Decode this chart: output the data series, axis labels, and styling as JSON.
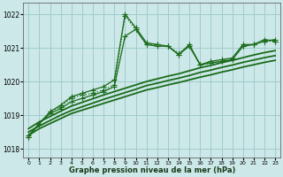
{
  "xlabel": "Graphe pression niveau de la mer (hPa)",
  "bg_color": "#cce8e8",
  "grid_color": "#a0cccc",
  "line_color": "#1a6b1a",
  "xlim": [
    -0.5,
    23.5
  ],
  "ylim": [
    1017.75,
    1022.35
  ],
  "yticks": [
    1018,
    1019,
    1020,
    1021,
    1022
  ],
  "xticks": [
    0,
    1,
    2,
    3,
    4,
    5,
    6,
    7,
    8,
    9,
    10,
    11,
    12,
    13,
    14,
    15,
    16,
    17,
    18,
    19,
    20,
    21,
    22,
    23
  ],
  "series": [
    {
      "x": [
        0,
        1,
        2,
        3,
        4,
        5,
        6,
        7,
        8,
        9,
        10,
        11,
        12,
        13,
        14,
        15,
        16,
        17,
        18,
        19,
        20,
        21,
        22,
        23
      ],
      "y": [
        1018.35,
        1018.75,
        1019.1,
        1019.25,
        1019.5,
        1019.6,
        1019.65,
        1019.75,
        1019.9,
        1021.95,
        1021.55,
        1021.1,
        1021.1,
        1021.05,
        1020.85,
        1021.05,
        1020.5,
        1020.55,
        1020.6,
        1020.65,
        1021.05,
        1021.1,
        1021.2,
        1021.2
      ],
      "marker": "+",
      "markersize": 4,
      "linewidth": 0.9,
      "linestyle": ":"
    },
    {
      "x": [
        0,
        1,
        2,
        3,
        4,
        5,
        6,
        7,
        8,
        9,
        10,
        11,
        12,
        13,
        14,
        15,
        16,
        17,
        18,
        19,
        20,
        21,
        22,
        23
      ],
      "y": [
        1018.4,
        1018.75,
        1019.1,
        1019.3,
        1019.55,
        1019.65,
        1019.75,
        1019.85,
        1020.05,
        1022.0,
        1021.6,
        1021.15,
        1021.1,
        1021.05,
        1020.8,
        1021.1,
        1020.5,
        1020.6,
        1020.65,
        1020.7,
        1021.1,
        1021.1,
        1021.25,
        1021.2
      ],
      "marker": "+",
      "markersize": 4,
      "linewidth": 0.9,
      "linestyle": "-"
    },
    {
      "x": [
        0,
        1,
        2,
        3,
        4,
        5,
        6,
        7,
        8,
        9,
        10,
        11,
        12,
        13,
        14,
        15,
        16,
        17,
        18,
        19,
        20,
        21,
        22,
        23
      ],
      "y": [
        1018.35,
        1018.75,
        1019.05,
        1019.2,
        1019.4,
        1019.5,
        1019.6,
        1019.7,
        1019.85,
        1021.35,
        1021.55,
        1021.1,
        1021.05,
        1021.05,
        1020.8,
        1021.05,
        1020.5,
        1020.55,
        1020.6,
        1020.65,
        1021.05,
        1021.1,
        1021.2,
        1021.25
      ],
      "marker": "+",
      "markersize": 4,
      "linewidth": 0.9,
      "linestyle": "-"
    },
    {
      "x": [
        0,
        1,
        2,
        3,
        4,
        5,
        6,
        7,
        8,
        9,
        10,
        11,
        12,
        13,
        14,
        15,
        16,
        17,
        18,
        19,
        20,
        21,
        22,
        23
      ],
      "y": [
        1018.4,
        1018.6,
        1018.75,
        1018.9,
        1019.05,
        1019.15,
        1019.25,
        1019.35,
        1019.45,
        1019.55,
        1019.65,
        1019.75,
        1019.82,
        1019.9,
        1019.97,
        1020.05,
        1020.13,
        1020.2,
        1020.28,
        1020.35,
        1020.43,
        1020.5,
        1020.57,
        1020.63
      ],
      "marker": null,
      "markersize": 0,
      "linewidth": 1.3,
      "linestyle": "-"
    },
    {
      "x": [
        0,
        1,
        2,
        3,
        4,
        5,
        6,
        7,
        8,
        9,
        10,
        11,
        12,
        13,
        14,
        15,
        16,
        17,
        18,
        19,
        20,
        21,
        22,
        23
      ],
      "y": [
        1018.5,
        1018.68,
        1018.84,
        1019.0,
        1019.14,
        1019.25,
        1019.36,
        1019.47,
        1019.57,
        1019.67,
        1019.77,
        1019.88,
        1019.95,
        1020.03,
        1020.1,
        1020.18,
        1020.27,
        1020.34,
        1020.42,
        1020.49,
        1020.57,
        1020.64,
        1020.71,
        1020.77
      ],
      "marker": null,
      "markersize": 0,
      "linewidth": 1.3,
      "linestyle": "-"
    },
    {
      "x": [
        0,
        1,
        2,
        3,
        4,
        5,
        6,
        7,
        8,
        9,
        10,
        11,
        12,
        13,
        14,
        15,
        16,
        17,
        18,
        19,
        20,
        21,
        22,
        23
      ],
      "y": [
        1018.6,
        1018.8,
        1018.96,
        1019.12,
        1019.27,
        1019.38,
        1019.49,
        1019.6,
        1019.7,
        1019.8,
        1019.9,
        1020.0,
        1020.08,
        1020.16,
        1020.23,
        1020.32,
        1020.41,
        1020.48,
        1020.56,
        1020.63,
        1020.71,
        1020.79,
        1020.86,
        1020.92
      ],
      "marker": null,
      "markersize": 0,
      "linewidth": 1.3,
      "linestyle": "-"
    }
  ]
}
